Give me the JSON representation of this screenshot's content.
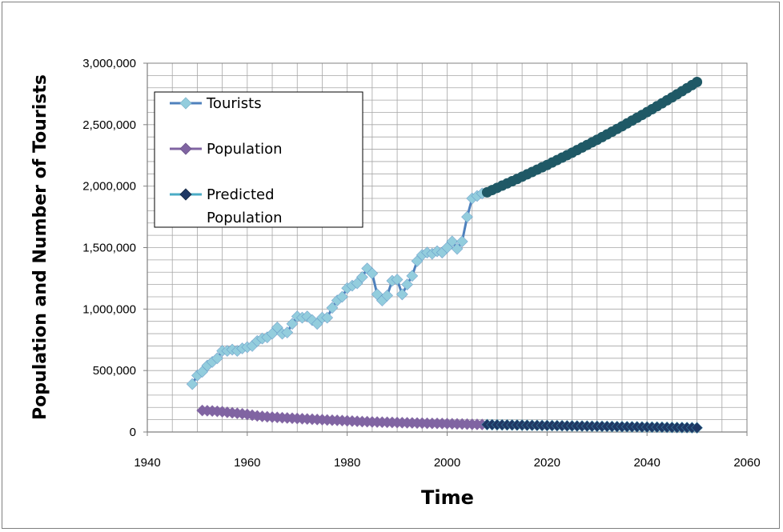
{
  "chart_data": {
    "type": "line",
    "title": "",
    "xlabel": "Time",
    "ylabel": "Population and Number of Tourists",
    "xlim": [
      1940,
      2060
    ],
    "ylim": [
      0,
      3000000
    ],
    "x_ticks": [
      "1940",
      "1960",
      "1980",
      "2000",
      "2020",
      "2040",
      "2060"
    ],
    "y_ticks": [
      "0",
      "500,000",
      "1,000,000",
      "1,500,000",
      "2,000,000",
      "2,500,000",
      "3,000,000"
    ],
    "grid": true,
    "legend_position": "top-left",
    "legend": [
      {
        "label": "Tourists",
        "line_color": "#4f81bd",
        "marker_color": "#93cddd",
        "marker": "diamond"
      },
      {
        "label": "Population",
        "line_color": "#8064a2",
        "marker_color": "#8064a2",
        "marker": "diamond"
      },
      {
        "label": "Predicted Population",
        "label_lines": [
          "Predicted",
          "Population"
        ],
        "line_color": "#4bacc6",
        "marker_color": "#1f3864",
        "marker": "diamond"
      }
    ],
    "series": [
      {
        "name": "Tourists",
        "line_color": "#4f81bd",
        "marker_color": "#93cddd",
        "marker": "diamond",
        "x": [
          1949,
          1950,
          1951,
          1952,
          1953,
          1954,
          1955,
          1956,
          1957,
          1958,
          1959,
          1960,
          1961,
          1962,
          1963,
          1964,
          1965,
          1966,
          1967,
          1968,
          1969,
          1970,
          1971,
          1972,
          1973,
          1974,
          1975,
          1976,
          1977,
          1978,
          1979,
          1980,
          1981,
          1982,
          1983,
          1984,
          1985,
          1986,
          1987,
          1988,
          1989,
          1990,
          1991,
          1992,
          1993,
          1994,
          1995,
          1996,
          1997,
          1998,
          1999,
          2000,
          2001,
          2002,
          2003,
          2004,
          2005,
          2006,
          2007
        ],
        "y": [
          390000,
          460000,
          490000,
          540000,
          570000,
          600000,
          660000,
          660000,
          670000,
          660000,
          680000,
          690000,
          700000,
          740000,
          760000,
          770000,
          800000,
          850000,
          800000,
          810000,
          880000,
          940000,
          930000,
          940000,
          910000,
          880000,
          930000,
          930000,
          1010000,
          1070000,
          1100000,
          1170000,
          1190000,
          1210000,
          1260000,
          1330000,
          1290000,
          1120000,
          1070000,
          1110000,
          1230000,
          1240000,
          1120000,
          1200000,
          1270000,
          1390000,
          1440000,
          1460000,
          1450000,
          1470000,
          1460000,
          1500000,
          1550000,
          1490000,
          1550000,
          1750000,
          1900000,
          1920000,
          1940000
        ]
      },
      {
        "name": "Population",
        "line_color": "#8064a2",
        "marker_color": "#8064a2",
        "marker": "diamond",
        "x": [
          1951,
          1952,
          1953,
          1954,
          1955,
          1956,
          1957,
          1958,
          1959,
          1960,
          1961,
          1962,
          1963,
          1964,
          1965,
          1966,
          1967,
          1968,
          1969,
          1970,
          1971,
          1972,
          1973,
          1974,
          1975,
          1976,
          1977,
          1978,
          1979,
          1980,
          1981,
          1982,
          1983,
          1984,
          1985,
          1986,
          1987,
          1988,
          1989,
          1990,
          1991,
          1992,
          1993,
          1994,
          1995,
          1996,
          1997,
          1998,
          1999,
          2000,
          2001,
          2002,
          2003,
          2004,
          2005,
          2006,
          2007
        ],
        "y": [
          175000,
          173000,
          171000,
          168000,
          165000,
          160000,
          156000,
          152000,
          148000,
          143000,
          137000,
          131000,
          127000,
          124000,
          121000,
          119000,
          116000,
          114000,
          112000,
          110000,
          108000,
          106000,
          104000,
          102000,
          100000,
          98000,
          96000,
          95000,
          93000,
          91000,
          89000,
          87000,
          85000,
          84000,
          82000,
          81000,
          80000,
          79000,
          78000,
          77000,
          76000,
          75000,
          74000,
          73000,
          72000,
          71000,
          70000,
          70000,
          69000,
          68000,
          67000,
          66000,
          65000,
          64000,
          63000,
          62000,
          61000
        ]
      },
      {
        "name": "Predicted Population",
        "line_color": "#4bacc6",
        "marker_color": "#1f3864",
        "marker": "diamond",
        "x": [
          2008,
          2009,
          2010,
          2011,
          2012,
          2013,
          2014,
          2015,
          2016,
          2017,
          2018,
          2019,
          2020,
          2021,
          2022,
          2023,
          2024,
          2025,
          2026,
          2027,
          2028,
          2029,
          2030,
          2031,
          2032,
          2033,
          2034,
          2035,
          2036,
          2037,
          2038,
          2039,
          2040,
          2041,
          2042,
          2043,
          2044,
          2045,
          2046,
          2047,
          2048,
          2049,
          2050
        ],
        "y": [
          60000,
          59000,
          58500,
          58000,
          57500,
          57000,
          56500,
          56000,
          55000,
          54500,
          54000,
          53000,
          52500,
          52000,
          51500,
          51000,
          50000,
          49500,
          49000,
          48500,
          48000,
          47000,
          46500,
          46000,
          45500,
          45000,
          44000,
          43500,
          43000,
          42500,
          42000,
          41000,
          40500,
          40000,
          39500,
          39000,
          38000,
          37500,
          37000,
          36500,
          36000,
          35000,
          34500
        ]
      },
      {
        "name": "",
        "line_color": "#1f5966",
        "marker_color": "#1f5966",
        "marker": "circle",
        "x": [
          2008,
          2009,
          2010,
          2011,
          2012,
          2013,
          2014,
          2015,
          2016,
          2017,
          2018,
          2019,
          2020,
          2021,
          2022,
          2023,
          2024,
          2025,
          2026,
          2027,
          2028,
          2029,
          2030,
          2031,
          2032,
          2033,
          2034,
          2035,
          2036,
          2037,
          2038,
          2039,
          2040,
          2041,
          2042,
          2043,
          2044,
          2045,
          2046,
          2047,
          2048,
          2049,
          2050
        ],
        "y": [
          1950000,
          1968000,
          1986000,
          2004000,
          2022000,
          2040000,
          2058000,
          2077000,
          2096000,
          2115000,
          2134000,
          2153000,
          2172000,
          2192000,
          2212000,
          2232000,
          2252000,
          2272000,
          2293000,
          2314000,
          2335000,
          2356000,
          2377000,
          2399000,
          2421000,
          2443000,
          2465000,
          2487000,
          2510000,
          2533000,
          2556000,
          2579000,
          2602000,
          2626000,
          2650000,
          2674000,
          2698000,
          2722000,
          2747000,
          2772000,
          2797000,
          2822000,
          2847000
        ]
      }
    ]
  }
}
